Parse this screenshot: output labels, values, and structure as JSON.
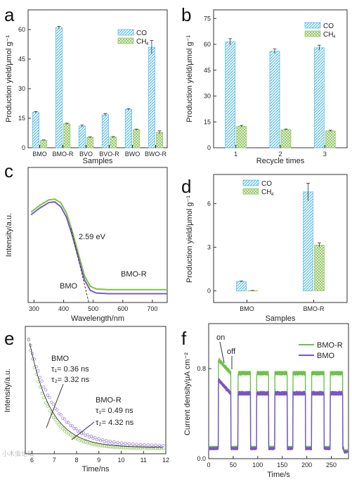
{
  "figure": {
    "watermark": "小木虫论坛"
  },
  "chart_data": [
    {
      "panel": "a",
      "type": "bar",
      "categories": [
        "BMO",
        "BMO-R",
        "BVO",
        "BVO-R",
        "BWO",
        "BWO-R"
      ],
      "series": [
        {
          "name": "CO",
          "values": [
            18,
            61,
            11,
            16.8,
            19.5,
            51
          ],
          "errors": [
            0.4,
            0.6,
            0.5,
            0.6,
            0.4,
            3.5
          ],
          "color": "#5bc0e8"
        },
        {
          "name": "CH4",
          "values": [
            3.8,
            12.2,
            5.2,
            5.4,
            9.2,
            7.8
          ],
          "errors": [
            0.2,
            0.3,
            0.3,
            0.3,
            0.3,
            0.8
          ],
          "color": "#9ccc65"
        }
      ],
      "xlabel": "Samples",
      "ylabel": "Production yield/μmol g⁻¹",
      "ylim": [
        0,
        70
      ],
      "yticks": [
        0,
        15,
        30,
        45,
        60
      ],
      "legend": "top-right"
    },
    {
      "panel": "b",
      "type": "bar",
      "categories": [
        "1",
        "2",
        "3"
      ],
      "series": [
        {
          "name": "CO",
          "values": [
            61.5,
            56,
            58
          ],
          "errors": [
            1.8,
            1.3,
            1.5
          ],
          "color": "#5bc0e8"
        },
        {
          "name": "CH4",
          "values": [
            12.5,
            10.5,
            9.8
          ],
          "errors": [
            0.5,
            0.4,
            0.4
          ],
          "color": "#9ccc65"
        }
      ],
      "xlabel": "Recycle times",
      "ylabel": "Production yield/μmol g⁻¹",
      "ylim": [
        0,
        80
      ],
      "yticks": [
        0,
        15,
        30,
        45,
        60,
        75
      ],
      "legend": "top-right"
    },
    {
      "panel": "c",
      "type": "line",
      "series": [
        {
          "name": "BMO-R",
          "color": "#7cc242",
          "x": [
            290,
            320,
            350,
            370,
            390,
            410,
            430,
            450,
            470,
            490,
            510,
            550,
            600,
            650,
            700,
            750
          ],
          "y": [
            0.67,
            0.72,
            0.76,
            0.765,
            0.74,
            0.66,
            0.52,
            0.36,
            0.2,
            0.12,
            0.1,
            0.095,
            0.095,
            0.095,
            0.095,
            0.095
          ]
        },
        {
          "name": "BMO",
          "color": "#7a5cc8",
          "x": [
            290,
            320,
            350,
            370,
            390,
            410,
            430,
            450,
            470,
            490,
            510,
            550,
            600,
            650,
            700,
            750
          ],
          "y": [
            0.65,
            0.7,
            0.74,
            0.745,
            0.71,
            0.63,
            0.49,
            0.33,
            0.17,
            0.09,
            0.07,
            0.065,
            0.065,
            0.065,
            0.065,
            0.065
          ]
        }
      ],
      "xlabel": "Wavelength/nm",
      "ylabel": "Intensity/a.u.",
      "xlim": [
        280,
        750
      ],
      "xticks": [
        300,
        400,
        500,
        600,
        700
      ],
      "annotations": [
        "2.59 eV",
        "BMO-R",
        "BMO"
      ]
    },
    {
      "panel": "d",
      "type": "bar",
      "categories": [
        "BMO",
        "BMO-R"
      ],
      "series": [
        {
          "name": "CO",
          "values": [
            0.65,
            6.8
          ],
          "errors": [
            0.03,
            0.6
          ],
          "color": "#5bc0e8"
        },
        {
          "name": "CH4",
          "values": [
            0.02,
            3.15
          ],
          "errors": [
            0.01,
            0.15
          ],
          "color": "#9ccc65"
        }
      ],
      "xlabel": "Samples",
      "ylabel": "Production yield/μmol g⁻¹",
      "ylim": [
        -0.8,
        8
      ],
      "yticks": [
        0,
        3,
        6
      ],
      "legend": "top-center"
    },
    {
      "panel": "e",
      "type": "scatter",
      "series": [
        {
          "name": "BMO",
          "color": "#9ccc65",
          "tau1": 0.36,
          "tau2": 3.32
        },
        {
          "name": "BMO-R",
          "color": "#a78be0",
          "tau1": 0.49,
          "tau2": 4.32
        }
      ],
      "xlabel": "Time/ns",
      "ylabel": "Intensity/a.u.",
      "xlim": [
        5.7,
        12
      ],
      "xticks": [
        6,
        7,
        8,
        9,
        10,
        11,
        12
      ],
      "annotations": {
        "bmo": [
          "BMO",
          "τ₁= 0.36 ns",
          "τ₂= 3.32 ns"
        ],
        "bmor": [
          "BMO-R",
          "τ₁= 0.49 ns",
          "τ₂= 4.32 ns"
        ]
      }
    },
    {
      "panel": "f",
      "type": "line",
      "series": [
        {
          "name": "BMO-R",
          "color": "#6cc24a",
          "on_level": 0.76,
          "off_level": 0.1
        },
        {
          "name": "BMO",
          "color": "#7a55c8",
          "on_level": 0.58,
          "off_level": 0.09
        }
      ],
      "cycles_on": [
        [
          20,
          45
        ],
        [
          60,
          85
        ],
        [
          98,
          122
        ],
        [
          135,
          160
        ],
        [
          172,
          197
        ],
        [
          210,
          235
        ],
        [
          248,
          273
        ]
      ],
      "xlabel": "Time/s",
      "ylabel": "Current density/μA cm⁻²",
      "xlim": [
        0,
        285
      ],
      "ylim": [
        0,
        1.2
      ],
      "xticks": [
        0,
        50,
        100,
        150,
        200,
        250
      ],
      "yticks": [
        0.0,
        0.8
      ],
      "annotations": [
        "on",
        "off"
      ],
      "legend": "top-right"
    }
  ]
}
